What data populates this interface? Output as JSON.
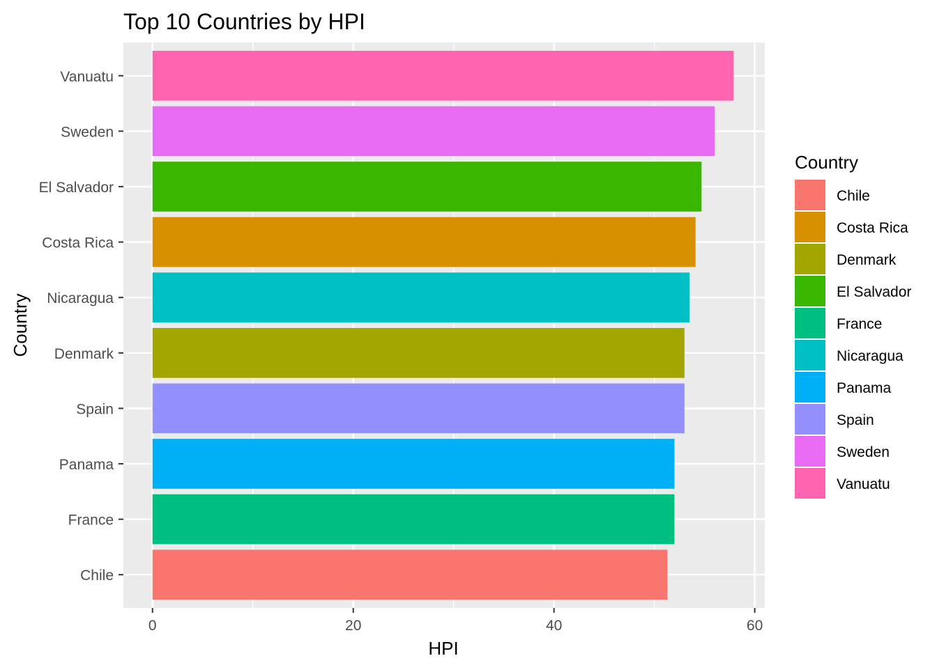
{
  "chart_data": {
    "type": "bar",
    "orientation": "horizontal",
    "title": "Top 10 Countries by HPI",
    "xlabel": "HPI",
    "ylabel": "Country",
    "xlim": [
      -2.9,
      61.0
    ],
    "x_ticks": [
      0,
      20,
      40,
      60
    ],
    "x_tick_labels": [
      "0",
      "20",
      "40",
      "60"
    ],
    "grid": true,
    "categories": [
      "Vanuatu",
      "Sweden",
      "El Salvador",
      "Costa Rica",
      "Nicaragua",
      "Denmark",
      "Spain",
      "Panama",
      "France",
      "Chile"
    ],
    "values": [
      57.9,
      56.0,
      54.7,
      54.1,
      53.5,
      53.0,
      53.0,
      52.0,
      52.0,
      51.3
    ],
    "colors": [
      "#FF64B0",
      "#E76BF3",
      "#39B600",
      "#D89000",
      "#00BFC4",
      "#A3A500",
      "#9590FF",
      "#00B0F6",
      "#00C081",
      "#F8766D"
    ],
    "legend": {
      "title": "Country",
      "placement": "right",
      "items": [
        {
          "label": "Chile",
          "color": "#F8766D"
        },
        {
          "label": "Costa Rica",
          "color": "#D89000"
        },
        {
          "label": "Denmark",
          "color": "#A3A500"
        },
        {
          "label": "El Salvador",
          "color": "#39B600"
        },
        {
          "label": "France",
          "color": "#00C081"
        },
        {
          "label": "Nicaragua",
          "color": "#00BFC4"
        },
        {
          "label": "Panama",
          "color": "#00B0F6"
        },
        {
          "label": "Spain",
          "color": "#9590FF"
        },
        {
          "label": "Sweden",
          "color": "#E76BF3"
        },
        {
          "label": "Vanuatu",
          "color": "#FF64B0"
        }
      ]
    }
  }
}
